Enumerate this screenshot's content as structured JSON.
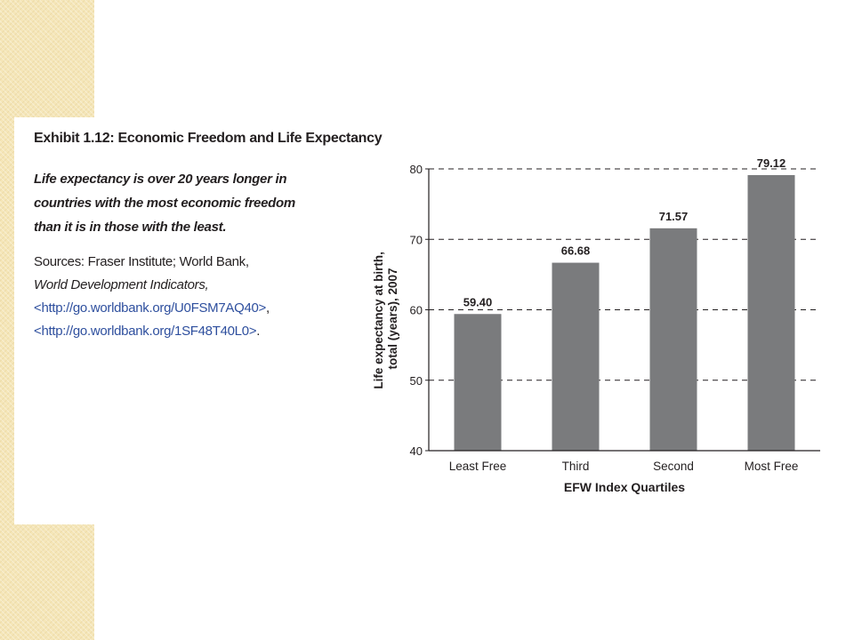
{
  "exhibit": {
    "title": "Exhibit 1.12:  Economic Freedom and Life Expectancy",
    "caption_lines": [
      "Life expectancy is over 20 years longer in",
      "countries with the most economic freedom",
      "than it is in those with the least."
    ],
    "sources": {
      "line1": "Sources:  Fraser Institute; World Bank,",
      "line2": "World Development Indicators,",
      "link1": "<http://go.worldbank.org/U0FSM7AQ40>",
      "link1_suffix": ",",
      "link2": "<http://go.worldbank.org/1SF48T40L0>",
      "link2_suffix": "."
    }
  },
  "chart_data": {
    "type": "bar",
    "categories": [
      "Least Free",
      "Third",
      "Second",
      "Most Free"
    ],
    "values": [
      59.4,
      66.68,
      71.57,
      79.12
    ],
    "value_labels": [
      "59.40",
      "66.68",
      "71.57",
      "79.12"
    ],
    "xlabel": "EFW Index Quartiles",
    "ylabel_lines": [
      "Life expectancy at birth,",
      "total (years), 2007"
    ],
    "ylim": [
      40,
      80
    ],
    "yticks": [
      40,
      50,
      60,
      70,
      80
    ],
    "grid": "dashed horizontal",
    "bar_color": "#7a7b7d"
  },
  "colors": {
    "link": "#2e4f9e",
    "text": "#231f20",
    "band": "#f5e6b8"
  }
}
